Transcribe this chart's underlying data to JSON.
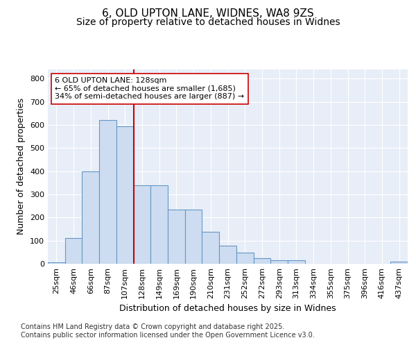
{
  "title_line1": "6, OLD UPTON LANE, WIDNES, WA8 9ZS",
  "title_line2": "Size of property relative to detached houses in Widnes",
  "xlabel": "Distribution of detached houses by size in Widnes",
  "ylabel": "Number of detached properties",
  "categories": [
    "25sqm",
    "46sqm",
    "66sqm",
    "87sqm",
    "107sqm",
    "128sqm",
    "149sqm",
    "169sqm",
    "190sqm",
    "210sqm",
    "231sqm",
    "252sqm",
    "272sqm",
    "293sqm",
    "313sqm",
    "334sqm",
    "355sqm",
    "375sqm",
    "396sqm",
    "416sqm",
    "437sqm"
  ],
  "values": [
    5,
    110,
    400,
    620,
    595,
    338,
    338,
    235,
    235,
    138,
    78,
    48,
    25,
    15,
    15,
    0,
    0,
    0,
    0,
    0,
    8
  ],
  "bar_color": "#cddcf0",
  "bar_edge_color": "#6496c8",
  "vline_color": "#cc0000",
  "vline_index": 5,
  "annotation_text": "6 OLD UPTON LANE: 128sqm\n← 65% of detached houses are smaller (1,685)\n34% of semi-detached houses are larger (887) →",
  "annotation_box_facecolor": "#ffffff",
  "annotation_box_edgecolor": "#cc0000",
  "ylim": [
    0,
    840
  ],
  "yticks": [
    0,
    100,
    200,
    300,
    400,
    500,
    600,
    700,
    800
  ],
  "plot_bg_color": "#e8eef8",
  "fig_bg_color": "#ffffff",
  "grid_color": "#ffffff",
  "footer_text": "Contains HM Land Registry data © Crown copyright and database right 2025.\nContains public sector information licensed under the Open Government Licence v3.0.",
  "title_fontsize": 11,
  "subtitle_fontsize": 10,
  "axis_label_fontsize": 9,
  "tick_fontsize": 8,
  "annotation_fontsize": 8,
  "footer_fontsize": 7,
  "ylabel_fontsize": 9
}
